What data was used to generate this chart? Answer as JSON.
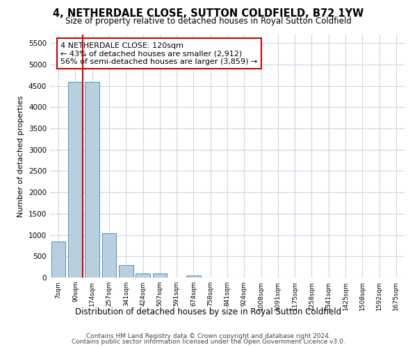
{
  "title": "4, NETHERDALE CLOSE, SUTTON COLDFIELD, B72 1YW",
  "subtitle": "Size of property relative to detached houses in Royal Sutton Coldfield",
  "xlabel": "Distribution of detached houses by size in Royal Sutton Coldfield",
  "ylabel": "Number of detached properties",
  "footer_line1": "Contains HM Land Registry data © Crown copyright and database right 2024.",
  "footer_line2": "Contains public sector information licensed under the Open Government Licence v3.0.",
  "annotation_title": "4 NETHERDALE CLOSE: 120sqm",
  "annotation_line2": "← 43% of detached houses are smaller (2,912)",
  "annotation_line3": "56% of semi-detached houses are larger (3,859) →",
  "bar_color": "#b8cfe0",
  "bar_edge_color": "#5b8db0",
  "highlight_line_color": "#cc0000",
  "annotation_box_edge_color": "#cc0000",
  "bg_color": "#ffffff",
  "grid_color": "#c8d8e8",
  "categories": [
    "7sqm",
    "90sqm",
    "174sqm",
    "257sqm",
    "341sqm",
    "424sqm",
    "507sqm",
    "591sqm",
    "674sqm",
    "758sqm",
    "841sqm",
    "924sqm",
    "1008sqm",
    "1091sqm",
    "1175sqm",
    "1258sqm",
    "1341sqm",
    "1425sqm",
    "1508sqm",
    "1592sqm",
    "1675sqm"
  ],
  "values": [
    850,
    4600,
    4600,
    1050,
    300,
    100,
    95,
    0,
    50,
    0,
    0,
    0,
    0,
    0,
    0,
    0,
    0,
    0,
    0,
    0,
    0
  ],
  "red_line_x": 1.5,
  "ylim": [
    0,
    5700
  ],
  "yticks": [
    0,
    500,
    1000,
    1500,
    2000,
    2500,
    3000,
    3500,
    4000,
    4500,
    5000,
    5500
  ]
}
